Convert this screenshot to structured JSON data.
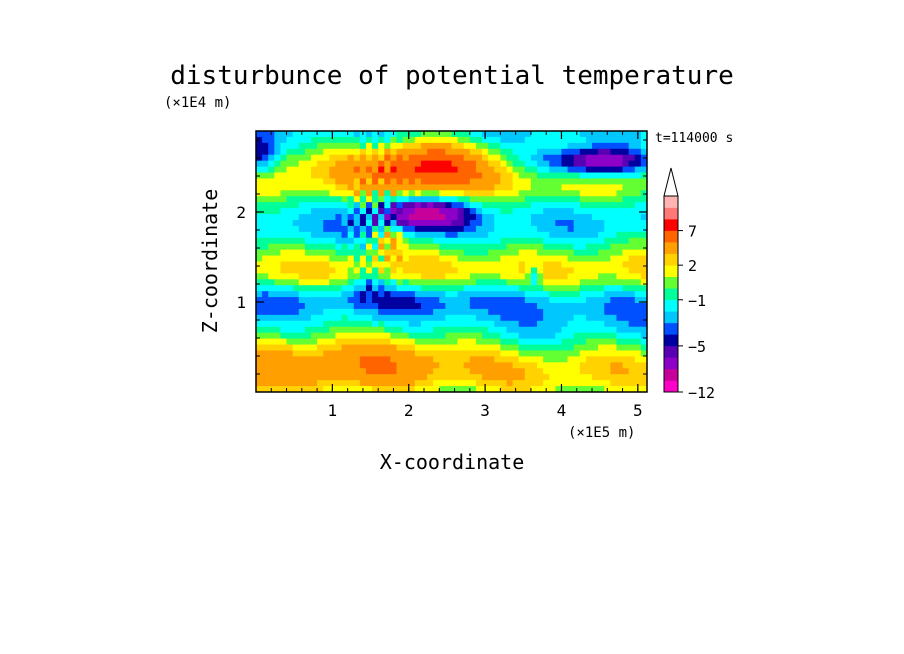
{
  "chart_data": {
    "type": "heatmap",
    "title": "disturbunce of potential temperature",
    "xlabel": "X-coordinate",
    "ylabel": "Z-coordinate",
    "x_unit": "(×1E5 m)",
    "y_unit": "(×1E4 m)",
    "time_label": "t=114000 s",
    "xlim": [
      0,
      5.12
    ],
    "ylim": [
      0,
      2.9
    ],
    "x_ticks": [
      "1",
      "2",
      "3",
      "4",
      "5"
    ],
    "y_ticks": [
      "1",
      "2"
    ],
    "colorbar": {
      "tick_labels": [
        "7",
        "2",
        "−1",
        "−5",
        "−12"
      ],
      "levels": [
        -12,
        -10,
        -8,
        -6,
        -5,
        -4,
        -3,
        -2,
        -1,
        0,
        1,
        2,
        3,
        5,
        7,
        9,
        11
      ],
      "colors": [
        "#ff00c8",
        "#c8009b",
        "#8c00c8",
        "#5a00b4",
        "#0000a0",
        "#0050ff",
        "#00c8ff",
        "#00ffff",
        "#00ff9b",
        "#64ff32",
        "#ffff00",
        "#ffd200",
        "#ffa000",
        "#ff6400",
        "#ff0000",
        "#ff7878",
        "#ffb4b4"
      ],
      "extends": "max"
    }
  }
}
